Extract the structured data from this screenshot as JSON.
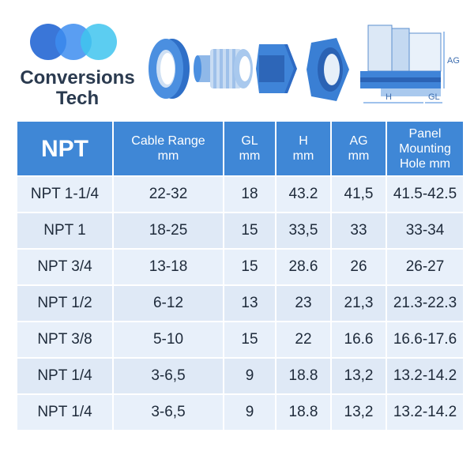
{
  "logo": {
    "line1": "Conversions",
    "line2": "Tech"
  },
  "diagram_labels": {
    "ag": "AG",
    "h": "H",
    "gl": "GL"
  },
  "colors": {
    "header_bg": "#3f87d6",
    "row_bg": "#e8f0fa",
    "brand_blue": "#2f6fd6",
    "brand_cyan": "#3fc4ee"
  },
  "table": {
    "headers": [
      {
        "line1": "NPT",
        "line2": ""
      },
      {
        "line1": "Cable Range",
        "line2": "mm"
      },
      {
        "line1": "GL",
        "line2": "mm"
      },
      {
        "line1": "H",
        "line2": "mm"
      },
      {
        "line1": "AG",
        "line2": "mm"
      },
      {
        "line1": "Panel Mounting",
        "line2": "Hole mm"
      }
    ],
    "rows": [
      [
        "NPT 1-1/4",
        "22-32",
        "18",
        "43.2",
        "41,5",
        "41.5-42.5"
      ],
      [
        "NPT 1",
        "18-25",
        "15",
        "33,5",
        "33",
        "33-34"
      ],
      [
        "NPT 3/4",
        "13-18",
        "15",
        "28.6",
        "26",
        "26-27"
      ],
      [
        "NPT 1/2",
        "6-12",
        "13",
        "23",
        "21,3",
        "21.3-22.3"
      ],
      [
        "NPT 3/8",
        "5-10",
        "15",
        "22",
        "16.6",
        "16.6-17.6"
      ],
      [
        "NPT 1/4",
        "3-6,5",
        "9",
        "18.8",
        "13,2",
        "13.2-14.2"
      ],
      [
        "NPT 1/4",
        "3-6,5",
        "9",
        "18.8",
        "13,2",
        "13.2-14.2"
      ]
    ]
  }
}
